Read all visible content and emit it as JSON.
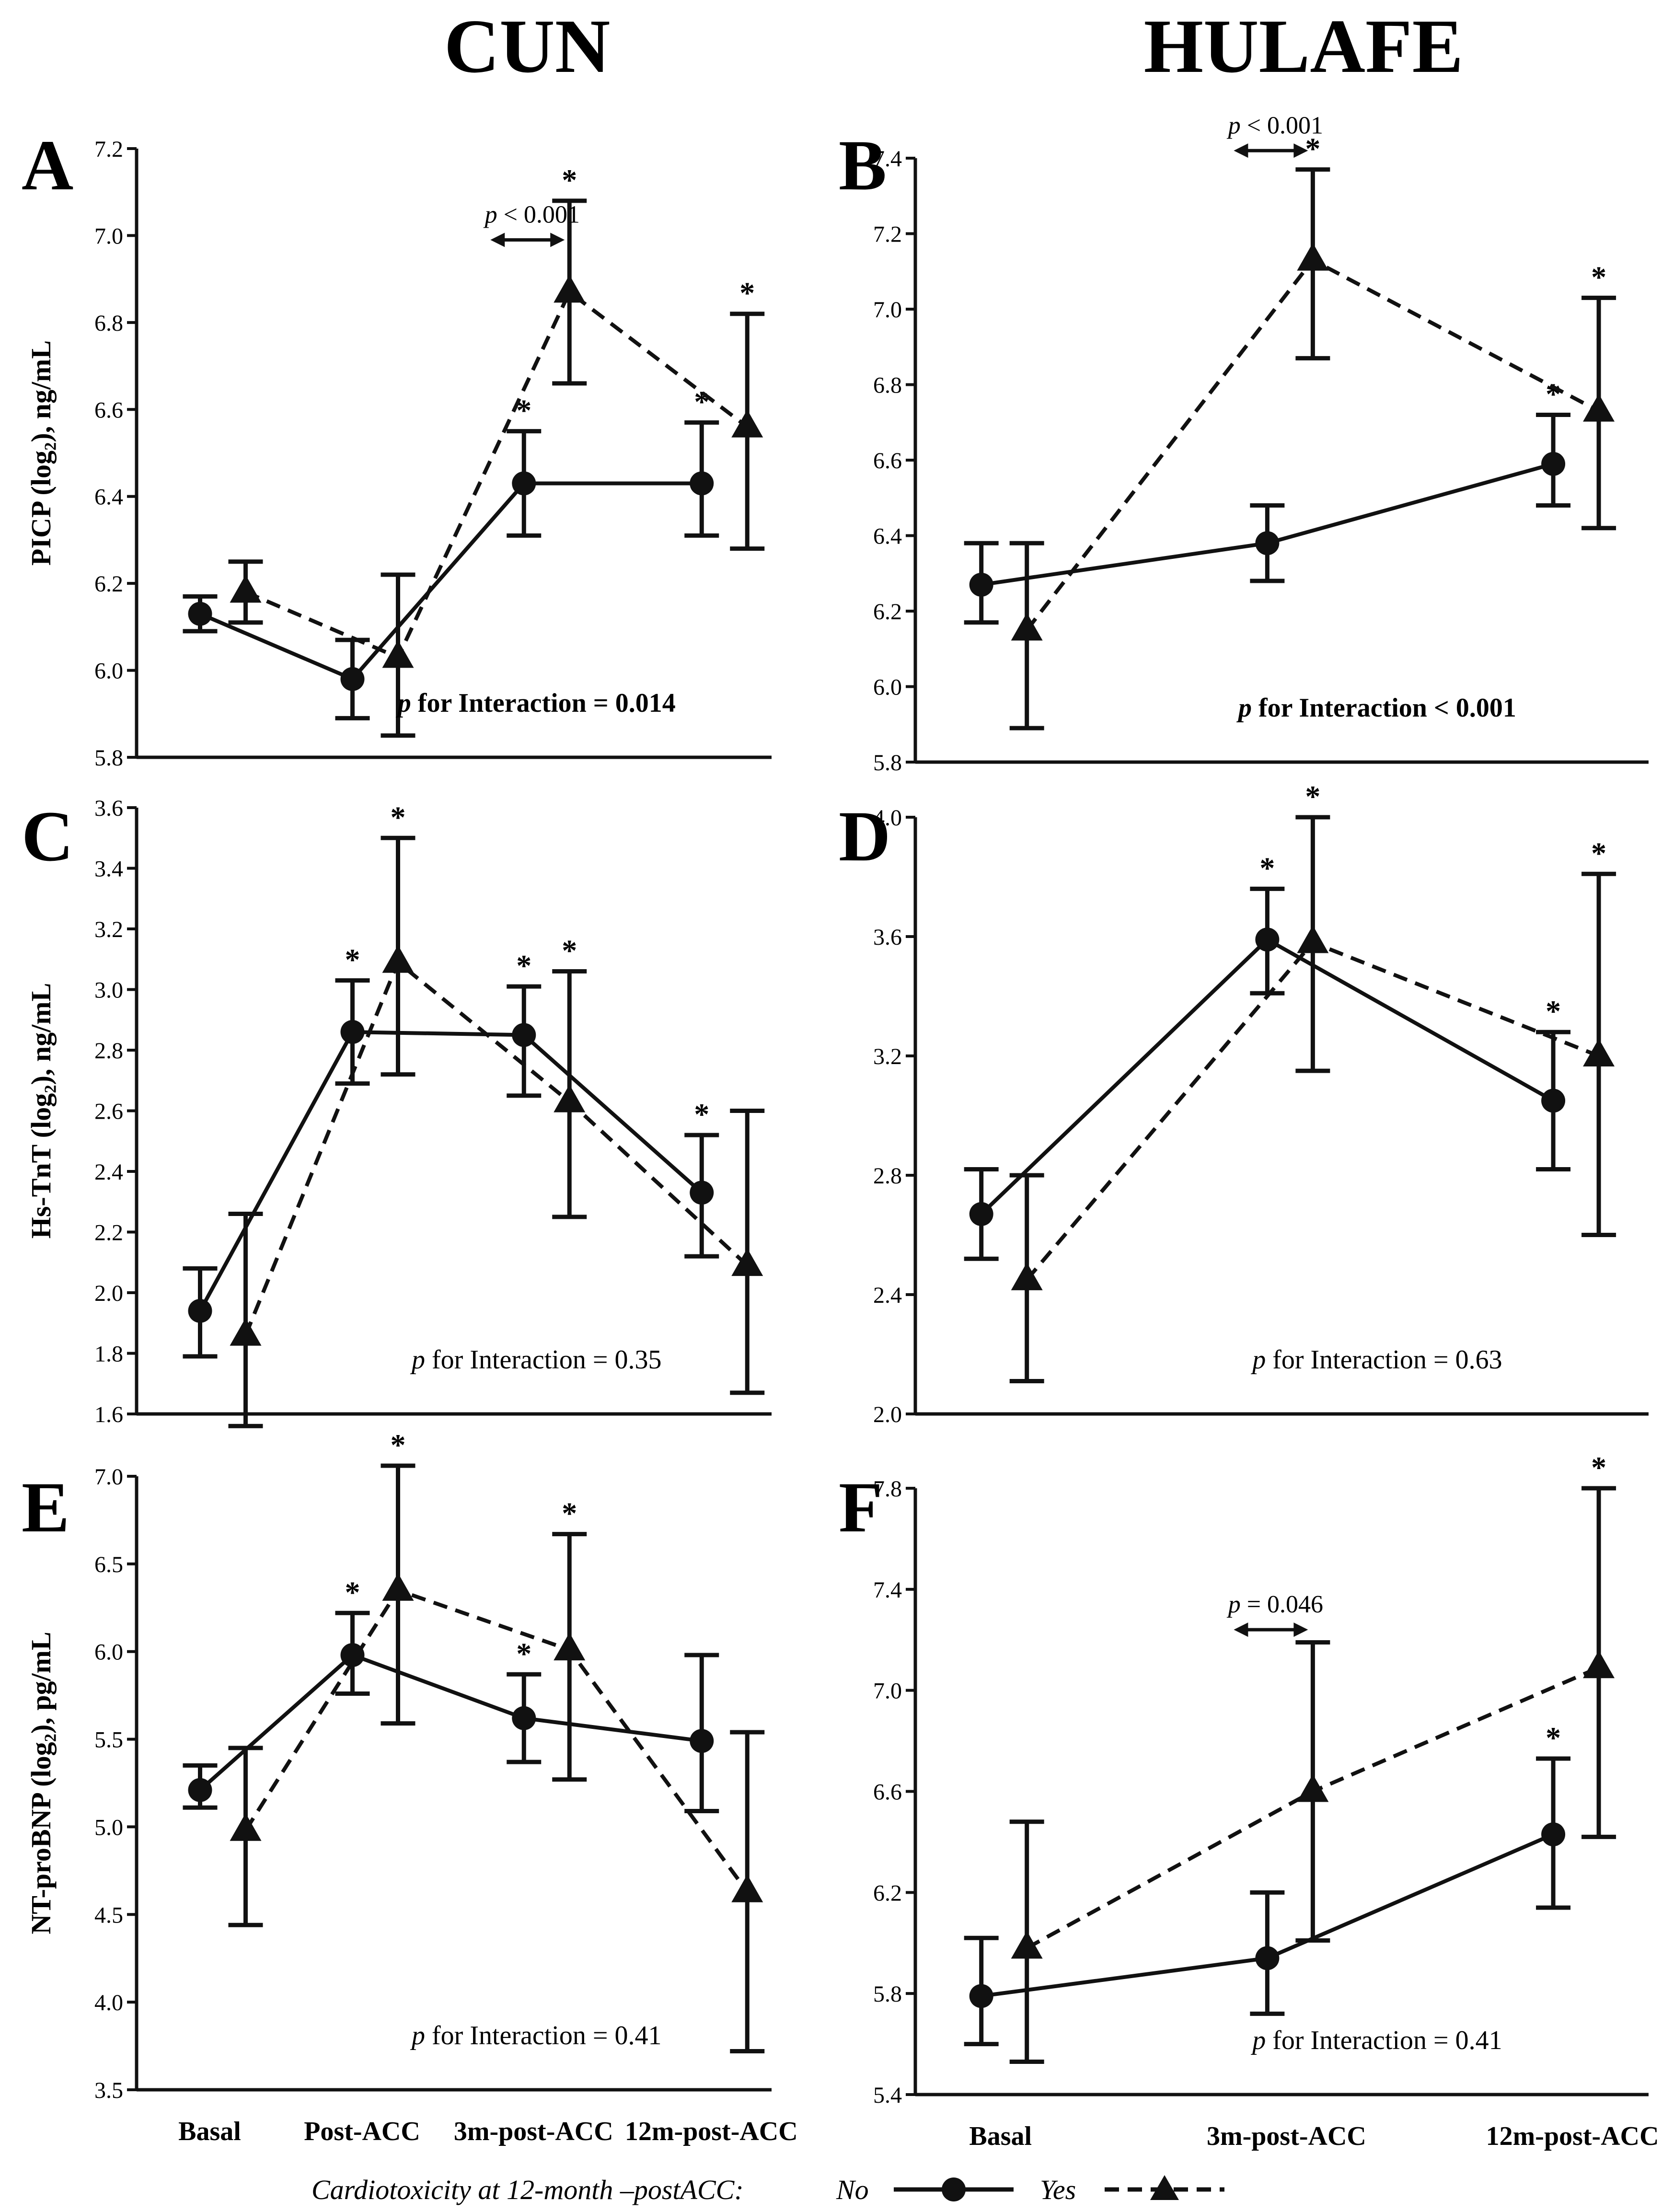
{
  "figure": {
    "columns": [
      "CUN",
      "HULAFE"
    ],
    "legend": {
      "title": "Cardiotoxicity at 12-month –postACC:",
      "no_label": "No",
      "yes_label": "Yes"
    },
    "colors": {
      "ink": "#111111",
      "background": "#ffffff"
    }
  },
  "chart_data": [
    {
      "panel": "A",
      "column": "CUN",
      "type": "line",
      "ylabel": "PICP (log₂), ng/mL",
      "ylabel_bold": true,
      "ylim": [
        5.8,
        7.2
      ],
      "yticks": [
        "5.8",
        "6.0",
        "6.2",
        "6.4",
        "6.6",
        "6.8",
        "7.0",
        "7.2"
      ],
      "categories": [
        "Basal",
        "Post-ACC",
        "3m-post-ACC",
        "12m-post-ACC"
      ],
      "show_xticklabels": false,
      "series": [
        {
          "name": "No",
          "marker": "circle",
          "dashed": false,
          "values": [
            6.13,
            5.98,
            6.43,
            6.43
          ],
          "lower": [
            6.09,
            5.89,
            6.31,
            6.31
          ],
          "upper": [
            6.17,
            6.07,
            6.55,
            6.57
          ],
          "stars": [
            false,
            false,
            true,
            true
          ]
        },
        {
          "name": "Yes",
          "marker": "triangle",
          "dashed": true,
          "values": [
            6.18,
            6.03,
            6.87,
            6.56
          ],
          "lower": [
            6.11,
            5.85,
            6.66,
            6.28
          ],
          "upper": [
            6.25,
            6.22,
            7.08,
            6.82
          ],
          "stars": [
            false,
            false,
            true,
            true
          ]
        }
      ],
      "interaction": {
        "prefix": "p",
        "text": " for Interaction = 0.014",
        "bold": true
      },
      "comparison": {
        "label_p": "p",
        "label_rest": " < 0.001",
        "from_index": 2,
        "value": 6.99
      }
    },
    {
      "panel": "B",
      "column": "HULAFE",
      "type": "line",
      "ylabel": "",
      "ylabel_bold": true,
      "ylim": [
        5.8,
        7.4
      ],
      "yticks": [
        "5.8",
        "6.0",
        "6.2",
        "6.4",
        "6.6",
        "6.8",
        "7.0",
        "7.2",
        "7.4"
      ],
      "categories": [
        "Basal",
        "3m-post-ACC",
        "12m-post-ACC"
      ],
      "show_xticklabels": false,
      "series": [
        {
          "name": "No",
          "marker": "circle",
          "dashed": false,
          "values": [
            6.27,
            6.38,
            6.59
          ],
          "lower": [
            6.17,
            6.28,
            6.48
          ],
          "upper": [
            6.38,
            6.48,
            6.72
          ],
          "stars": [
            false,
            false,
            true
          ]
        },
        {
          "name": "Yes",
          "marker": "triangle",
          "dashed": true,
          "values": [
            6.15,
            7.13,
            6.73
          ],
          "lower": [
            5.89,
            6.87,
            6.42
          ],
          "upper": [
            6.38,
            7.37,
            7.03
          ],
          "stars": [
            false,
            true,
            true
          ]
        }
      ],
      "interaction": {
        "prefix": "p",
        "text": " for Interaction < 0.001",
        "bold": true
      },
      "comparison": {
        "label_p": "p",
        "label_rest": " < 0.001",
        "from_index": 1,
        "value": 7.42
      }
    },
    {
      "panel": "C",
      "column": "CUN",
      "type": "line",
      "ylabel": "Hs-TnT (log₂), ng/mL",
      "ylabel_bold": true,
      "ylim": [
        1.6,
        3.6
      ],
      "yticks": [
        "1.6",
        "1.8",
        "2.0",
        "2.2",
        "2.4",
        "2.6",
        "2.8",
        "3.0",
        "3.2",
        "3.4",
        "3.6"
      ],
      "categories": [
        "Basal",
        "Post-ACC",
        "3m-post-ACC",
        "12m-post-ACC"
      ],
      "show_xticklabels": false,
      "series": [
        {
          "name": "No",
          "marker": "circle",
          "dashed": false,
          "values": [
            1.94,
            2.86,
            2.85,
            2.33
          ],
          "lower": [
            1.79,
            2.69,
            2.65,
            2.12
          ],
          "upper": [
            2.08,
            3.03,
            3.01,
            2.52
          ],
          "stars": [
            false,
            true,
            true,
            true
          ]
        },
        {
          "name": "Yes",
          "marker": "triangle",
          "dashed": true,
          "values": [
            1.86,
            3.09,
            2.63,
            2.09
          ],
          "lower": [
            1.56,
            2.72,
            2.25,
            1.67
          ],
          "upper": [
            2.26,
            3.5,
            3.06,
            2.6
          ],
          "stars": [
            false,
            true,
            true,
            false
          ]
        }
      ],
      "interaction": {
        "prefix": "p",
        "text": " for Interaction = 0.35",
        "bold": false
      }
    },
    {
      "panel": "D",
      "column": "HULAFE",
      "type": "line",
      "ylabel": "",
      "ylabel_bold": true,
      "ylim": [
        2.0,
        4.0
      ],
      "yticks": [
        "2.0",
        "2.4",
        "2.8",
        "3.2",
        "3.6",
        "4.0"
      ],
      "categories": [
        "Basal",
        "3m-post-ACC",
        "12m-post-ACC"
      ],
      "show_xticklabels": false,
      "series": [
        {
          "name": "No",
          "marker": "circle",
          "dashed": false,
          "values": [
            2.67,
            3.59,
            3.05
          ],
          "lower": [
            2.52,
            3.41,
            2.82
          ],
          "upper": [
            2.82,
            3.76,
            3.28
          ],
          "stars": [
            false,
            true,
            true
          ]
        },
        {
          "name": "Yes",
          "marker": "triangle",
          "dashed": true,
          "values": [
            2.45,
            3.58,
            3.2
          ],
          "lower": [
            2.11,
            3.15,
            2.6
          ],
          "upper": [
            2.8,
            4.0,
            3.81
          ],
          "stars": [
            false,
            true,
            true
          ]
        }
      ],
      "interaction": {
        "prefix": "p",
        "text": " for Interaction = 0.63",
        "bold": false
      }
    },
    {
      "panel": "E",
      "column": "CUN",
      "type": "line",
      "ylabel": "NT-proBNP (log₂), pg/mL",
      "ylabel_bold": true,
      "ylim": [
        3.5,
        7.0
      ],
      "yticks": [
        "3.5",
        "4.0",
        "4.5",
        "5.0",
        "5.5",
        "6.0",
        "6.5",
        "7.0"
      ],
      "categories": [
        "Basal",
        "Post-ACC",
        "3m-post-ACC",
        "12m-post-ACC"
      ],
      "show_xticklabels": true,
      "series": [
        {
          "name": "No",
          "marker": "circle",
          "dashed": false,
          "values": [
            5.21,
            5.98,
            5.62,
            5.49
          ],
          "lower": [
            5.11,
            5.76,
            5.37,
            5.09
          ],
          "upper": [
            5.35,
            6.22,
            5.87,
            5.98
          ],
          "stars": [
            false,
            true,
            true,
            false
          ]
        },
        {
          "name": "Yes",
          "marker": "triangle",
          "dashed": true,
          "values": [
            4.98,
            6.35,
            6.01,
            4.63
          ],
          "lower": [
            4.44,
            5.59,
            5.27,
            3.72
          ],
          "upper": [
            5.45,
            7.06,
            6.67,
            5.54
          ],
          "stars": [
            false,
            true,
            true,
            false
          ]
        }
      ],
      "interaction": {
        "prefix": "p",
        "text": " for Interaction = 0.41",
        "bold": false
      }
    },
    {
      "panel": "F",
      "column": "HULAFE",
      "type": "line",
      "ylabel": "",
      "ylabel_bold": true,
      "ylim": [
        5.4,
        7.8
      ],
      "yticks": [
        "5.4",
        "5.8",
        "6.2",
        "6.6",
        "7.0",
        "7.4",
        "7.8"
      ],
      "categories": [
        "Basal",
        "3m-post-ACC",
        "12m-post-ACC"
      ],
      "show_xticklabels": true,
      "series": [
        {
          "name": "No",
          "marker": "circle",
          "dashed": false,
          "values": [
            5.79,
            5.94,
            6.43
          ],
          "lower": [
            5.6,
            5.72,
            6.14
          ],
          "upper": [
            6.02,
            6.2,
            6.73
          ],
          "stars": [
            false,
            false,
            true
          ]
        },
        {
          "name": "Yes",
          "marker": "triangle",
          "dashed": true,
          "values": [
            5.98,
            6.6,
            7.09
          ],
          "lower": [
            5.53,
            6.01,
            6.42
          ],
          "upper": [
            6.48,
            7.19,
            7.8
          ],
          "stars": [
            false,
            false,
            true
          ]
        }
      ],
      "interaction": {
        "prefix": "p",
        "text": " for Interaction = 0.41",
        "bold": false
      },
      "comparison": {
        "label_p": "p",
        "label_rest": " = 0.046",
        "from_index": 1,
        "value": 7.24
      }
    }
  ]
}
